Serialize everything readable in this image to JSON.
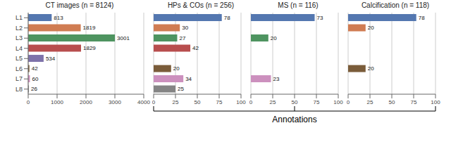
{
  "chart_data": [
    {
      "type": "bar",
      "orientation": "horizontal",
      "title": "CT images (n = 8124)",
      "categories": [
        "L1",
        "L2",
        "L3",
        "L4",
        "L5",
        "L6",
        "L7",
        "L8"
      ],
      "values": [
        813,
        1819,
        3001,
        1829,
        534,
        42,
        60,
        26
      ],
      "colors": [
        "#5477b0",
        "#d07c52",
        "#4e9460",
        "#b84e4e",
        "#7e72aa",
        "#7a5c3a",
        "#cc90be",
        "#848484"
      ],
      "xlim": [
        0,
        4000
      ],
      "xticks": [
        0,
        1000,
        2000,
        3000,
        4000
      ],
      "grid": true,
      "data_labels": true
    },
    {
      "type": "bar",
      "orientation": "horizontal",
      "title": "HPs & COs (n = 256)",
      "categories": [
        "L1",
        "L2",
        "L3",
        "L4",
        "L5",
        "L6",
        "L7",
        "L8"
      ],
      "values": [
        78,
        30,
        27,
        42,
        0,
        20,
        34,
        25
      ],
      "colors": [
        "#5477b0",
        "#d07c52",
        "#4e9460",
        "#b84e4e",
        "#7e72aa",
        "#7a5c3a",
        "#cc90be",
        "#848484"
      ],
      "xlim": [
        0,
        100
      ],
      "xticks": [
        0,
        25,
        50,
        75,
        100
      ],
      "grid": true,
      "data_labels": true,
      "tick_labels": "x"
    },
    {
      "type": "bar",
      "orientation": "horizontal",
      "title": "MS (n = 116)",
      "categories": [
        "L1",
        "L2",
        "L3",
        "L4",
        "L5",
        "L6",
        "L7",
        "L8"
      ],
      "values": [
        73,
        0,
        20,
        0,
        0,
        0,
        23,
        0
      ],
      "colors": [
        "#5477b0",
        "#d07c52",
        "#4e9460",
        "#b84e4e",
        "#7e72aa",
        "#7a5c3a",
        "#cc90be",
        "#848484"
      ],
      "xlim": [
        0,
        100
      ],
      "xticks": [
        0,
        25,
        50,
        75,
        100
      ],
      "grid": true,
      "data_labels": true,
      "tick_labels": "x",
      "xlabel": "Annotations"
    },
    {
      "type": "bar",
      "orientation": "horizontal",
      "title": "Calcification (n = 118)",
      "categories": [
        "L1",
        "L2",
        "L3",
        "L4",
        "L5",
        "L6",
        "L7",
        "L8"
      ],
      "values": [
        78,
        20,
        0,
        0,
        0,
        20,
        0,
        0
      ],
      "colors": [
        "#5477b0",
        "#d07c52",
        "#4e9460",
        "#b84e4e",
        "#7e72aa",
        "#7a5c3a",
        "#cc90be",
        "#848484"
      ],
      "xlim": [
        0,
        100
      ],
      "xticks": [
        0,
        25,
        50,
        75,
        100
      ],
      "grid": true,
      "data_labels": true,
      "tick_labels": "x"
    }
  ]
}
